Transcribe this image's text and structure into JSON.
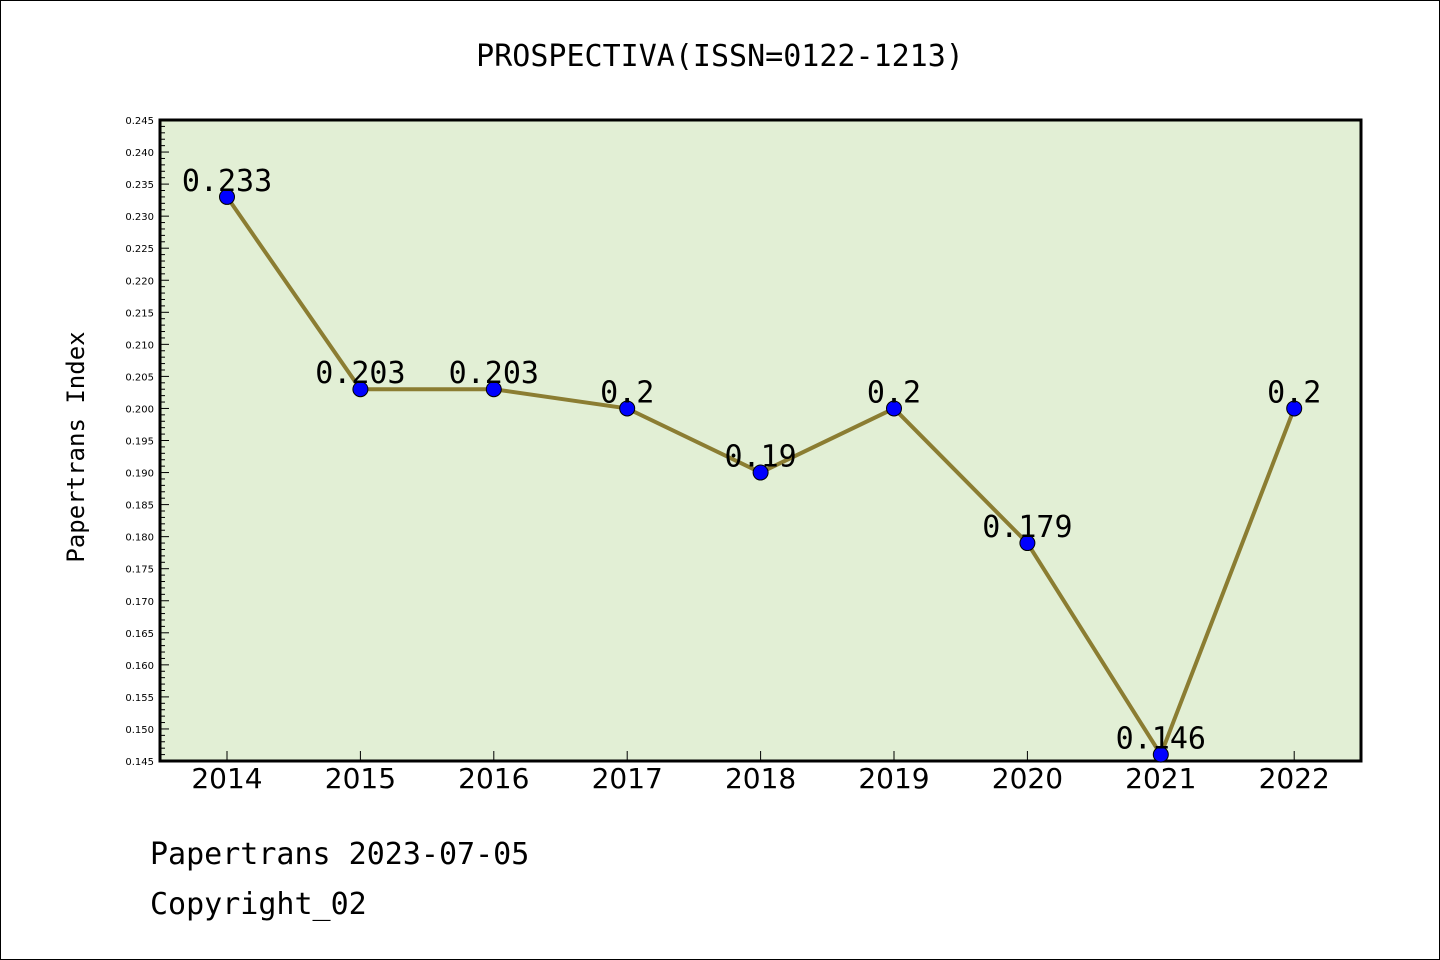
{
  "chart_data": {
    "type": "line",
    "title": "PROSPECTIVA(ISSN=0122-1213)",
    "ylabel": "Papertrans Index",
    "xlabel": "",
    "categories": [
      "2014",
      "2015",
      "2016",
      "2017",
      "2018",
      "2019",
      "2020",
      "2021",
      "2022"
    ],
    "values": [
      0.233,
      0.203,
      0.203,
      0.2,
      0.19,
      0.2,
      0.179,
      0.146,
      0.2
    ],
    "data_labels": [
      "0.233",
      "0.203",
      "0.203",
      "0.2",
      "0.19",
      "0.2",
      "0.179",
      "0.146",
      "0.2"
    ],
    "ylim": [
      0.145,
      0.245
    ],
    "yticks": [
      "0.145",
      "0.150",
      "0.155",
      "0.160",
      "0.165",
      "0.170",
      "0.175",
      "0.180",
      "0.185",
      "0.190",
      "0.195",
      "0.200",
      "0.205",
      "0.210",
      "0.215",
      "0.220",
      "0.225",
      "0.230",
      "0.235",
      "0.240",
      "0.245"
    ],
    "grid": false,
    "colors": {
      "plot_background": "#e2efd5",
      "line": "#8b7d32",
      "marker": "#0000ff"
    }
  },
  "footer": {
    "line1": "Papertrans 2023-07-05",
    "line2": "Copyright_02"
  }
}
